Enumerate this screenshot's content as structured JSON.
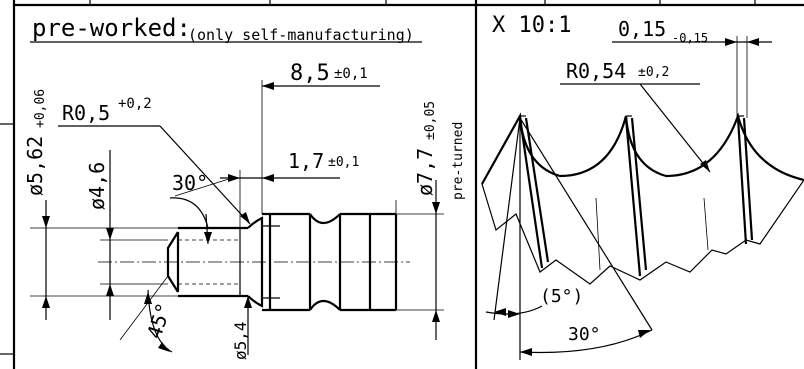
{
  "left_view": {
    "title": "pre-worked:",
    "title_note": "(only self-manufacturing)",
    "dims": {
      "length_main": "8,5",
      "length_main_tol": "±0,1",
      "length_neck": "1,7",
      "length_neck_tol": "±0,1",
      "radius": "R0,5",
      "radius_tol": "+0,2",
      "chamfer_angle": "30°",
      "cone_angle": "45°",
      "dia_outer": "ø5,62",
      "dia_outer_tol": "+0,06",
      "dia_inner": "ø4,6",
      "dia_groove": "ø5,4",
      "dia_pre": "ø7,7",
      "dia_pre_tol": "±0,05",
      "pre_note": "pre-turned"
    }
  },
  "right_view": {
    "scale": "X 10:1",
    "width": "0,15",
    "width_tol": "-0,15",
    "radius": "R0,54",
    "radius_tol": "±0,2",
    "angle_small": "(5°)",
    "angle_large": "30°"
  }
}
